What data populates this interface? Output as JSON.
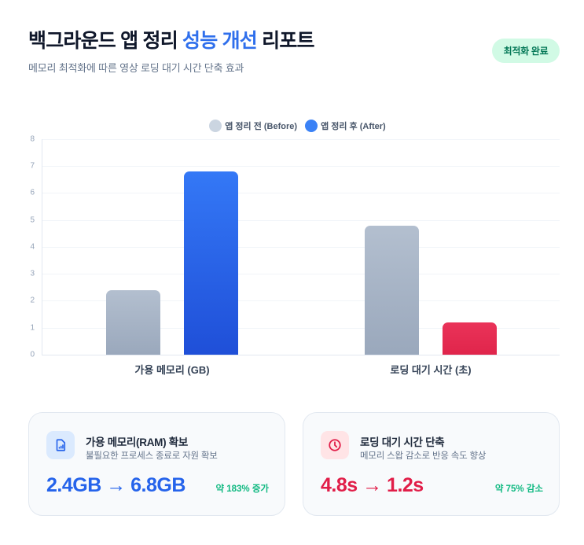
{
  "header": {
    "title_prefix": "백그라운드 앱 정리 ",
    "title_accent": "성능 개선",
    "title_suffix": " 리포트",
    "subtitle": "메모리 최적화에 따른 영상 로딩 대기 시간 단축 효과",
    "badge": "최적화 완료"
  },
  "colors": {
    "accent": "#2f6fec",
    "before": "#a3b0c2",
    "after_memory": "#2563eb",
    "after_loading": "#e11d48",
    "badge_bg": "#d1fae5",
    "badge_text": "#047857",
    "positive_change": "#10b981"
  },
  "legend": [
    {
      "label": "앱 정리 전 (Before)",
      "color": "#cbd5e1"
    },
    {
      "label": "앱 정리 후 (After)",
      "color": "#3b82f6"
    }
  ],
  "y_ticks": [
    "0",
    "1",
    "2",
    "3",
    "4",
    "5",
    "6",
    "7",
    "8"
  ],
  "chart_data": {
    "type": "bar",
    "title": "",
    "categories": [
      "가용 메모리 (GB)",
      "로딩 대기 시간 (초)"
    ],
    "series": [
      {
        "name": "앱 정리 전 (Before)",
        "values": [
          2.4,
          4.8
        ]
      },
      {
        "name": "앱 정리 후 (After)",
        "values": [
          6.8,
          1.2
        ]
      }
    ],
    "xlabel": "",
    "ylabel": "",
    "ylim": [
      0,
      8
    ],
    "yticks": [
      0,
      1,
      2,
      3,
      4,
      5,
      6,
      7,
      8
    ],
    "grid": true,
    "legend_position": "top"
  },
  "cards": [
    {
      "icon": "memory-card-icon",
      "title": "가용 메모리(RAM) 확보",
      "description": "불필요한 프로세스 종료로 자원 확보",
      "value": "2.4GB → 6.8GB",
      "change": "약 183% 증가",
      "value_color": "#2563eb"
    },
    {
      "icon": "clock-icon",
      "title": "로딩 대기 시간 단축",
      "description": "메모리 스왑 감소로 반응 속도 향상",
      "value": "4.8s → 1.2s",
      "change": "약 75% 감소",
      "value_color": "#e11d48"
    }
  ]
}
